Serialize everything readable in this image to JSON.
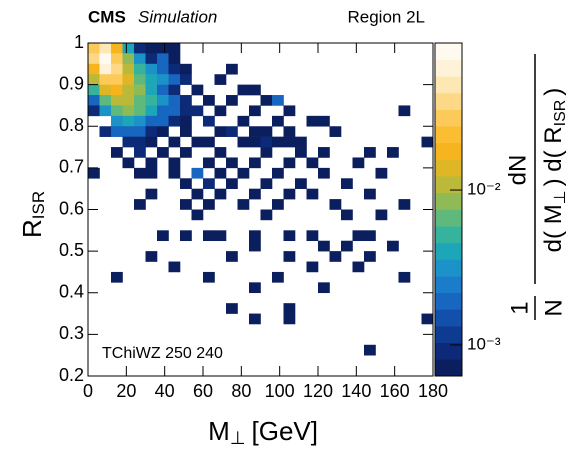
{
  "chart_data": {
    "type": "heatmap",
    "cms": "CMS",
    "cms_sub": "Simulation",
    "region": "Region 2L",
    "annotation": "TChiWZ 250 240",
    "xlabel": "M",
    "xlabel_sub": "⊥",
    "xlabel_unit": "[GeV]",
    "ylabel": "R",
    "ylabel_sub": "ISR",
    "zlabel": {
      "left_num": "1",
      "left_den": "N",
      "num": "dN",
      "den_parts": [
        "d( M",
        "⊥",
        ") d( R",
        "ISR",
        ")"
      ]
    },
    "xlim": [
      0,
      180
    ],
    "xticks": [
      0,
      20,
      40,
      60,
      80,
      100,
      120,
      140,
      160,
      180
    ],
    "ylim": [
      0.2,
      1
    ],
    "yticks": [
      0.2,
      0.3,
      0.4,
      0.5,
      0.6,
      0.7,
      0.8,
      0.9,
      1
    ],
    "xbin": 6,
    "ybin": 0.025,
    "zlim": [
      0.00063,
      0.089
    ],
    "zlog": true,
    "zticks": [
      {
        "value": 0.001,
        "label": "10⁻³"
      },
      {
        "value": 0.01,
        "label": "10⁻²"
      }
    ],
    "colors": [
      "#0b1f5e",
      "#0c2a78",
      "#0e3b92",
      "#1250ac",
      "#1766bf",
      "#1b7dca",
      "#1b93c8",
      "#1da6b8",
      "#35b39c",
      "#5fb87c",
      "#8fba56",
      "#bab93a",
      "#dfb626",
      "#f6b41e",
      "#fbbd32",
      "#fcca58",
      "#fdd987",
      "#fde7b3",
      "#fef3d9",
      "#fffaf0"
    ],
    "rows": [
      {
        "y": 0.975,
        "x": [
          0,
          6,
          12,
          18,
          24,
          30,
          36,
          42
        ],
        "values": [
          0.03,
          0.05,
          0.02,
          0.004,
          0.001,
          0.0008,
          0.0008,
          0.0008
        ]
      },
      {
        "y": 0.95,
        "x": [
          0,
          6,
          12,
          18,
          24,
          30,
          36,
          42
        ],
        "values": [
          0.04,
          0.08,
          0.03,
          0.008,
          0.003,
          0.001,
          0.002,
          0.0008
        ]
      },
      {
        "y": 0.925,
        "x": [
          0,
          6,
          12,
          18,
          24,
          30,
          36,
          42,
          48,
          72
        ],
        "values": [
          0.02,
          0.06,
          0.04,
          0.01,
          0.005,
          0.003,
          0.002,
          0.001,
          0.0008,
          0.0008
        ]
      },
      {
        "y": 0.9,
        "x": [
          0,
          6,
          12,
          18,
          24,
          30,
          36,
          42,
          48,
          66
        ],
        "values": [
          0.01,
          0.03,
          0.03,
          0.015,
          0.006,
          0.004,
          0.003,
          0.002,
          0.001,
          0.0008
        ]
      },
      {
        "y": 0.875,
        "x": [
          0,
          6,
          12,
          18,
          24,
          30,
          36,
          42,
          54,
          78,
          84
        ],
        "values": [
          0.005,
          0.015,
          0.02,
          0.012,
          0.008,
          0.004,
          0.002,
          0.001,
          0.0008,
          0.0008,
          0.0008
        ]
      },
      {
        "y": 0.85,
        "x": [
          0,
          6,
          12,
          18,
          24,
          30,
          36,
          42,
          48,
          60,
          72,
          90,
          96
        ],
        "values": [
          0.002,
          0.006,
          0.01,
          0.01,
          0.007,
          0.005,
          0.003,
          0.002,
          0.001,
          0.0008,
          0.0008,
          0.0008,
          0.002
        ]
      },
      {
        "y": 0.825,
        "x": [
          0,
          6,
          12,
          18,
          24,
          30,
          36,
          42,
          48,
          54,
          66,
          84,
          102,
          162
        ],
        "values": [
          0.001,
          0.003,
          0.006,
          0.008,
          0.006,
          0.004,
          0.002,
          0.002,
          0.001,
          0.001,
          0.0008,
          0.0008,
          0.0008,
          0.0008
        ]
      },
      {
        "y": 0.8,
        "x": [
          12,
          18,
          24,
          30,
          36,
          42,
          48,
          60,
          78,
          96,
          114,
          120
        ],
        "values": [
          0.003,
          0.004,
          0.003,
          0.002,
          0.002,
          0.001,
          0.0008,
          0.001,
          0.0008,
          0.0008,
          0.0008,
          0.0008
        ]
      },
      {
        "y": 0.775,
        "x": [
          6,
          12,
          18,
          24,
          30,
          36,
          48,
          66,
          72,
          84,
          90,
          102,
          126
        ],
        "values": [
          0.001,
          0.002,
          0.002,
          0.002,
          0.001,
          0.0008,
          0.0008,
          0.0008,
          0.001,
          0.0008,
          0.0008,
          0.0008,
          0.0008
        ]
      },
      {
        "y": 0.75,
        "x": [
          18,
          24,
          30,
          42,
          54,
          60,
          78,
          84,
          90,
          96,
          102,
          108,
          174
        ],
        "values": [
          0.001,
          0.001,
          0.0008,
          0.0008,
          0.0008,
          0.0008,
          0.0008,
          0.0008,
          0.001,
          0.0008,
          0.0008,
          0.0008,
          0.0008
        ]
      },
      {
        "y": 0.725,
        "x": [
          12,
          24,
          36,
          48,
          66,
          90,
          108,
          120,
          144,
          156
        ],
        "values": [
          0.0008,
          0.001,
          0.0008,
          0.0008,
          0.0008,
          0.0008,
          0.0008,
          0.0008,
          0.0008,
          0.0008
        ]
      },
      {
        "y": 0.7,
        "x": [
          18,
          30,
          42,
          60,
          72,
          84,
          102,
          114,
          138
        ],
        "values": [
          0.0008,
          0.0008,
          0.0008,
          0.0008,
          0.0008,
          0.0008,
          0.0008,
          0.0008,
          0.0008
        ]
      },
      {
        "y": 0.675,
        "x": [
          0,
          24,
          30,
          42,
          54,
          66,
          78,
          96,
          120,
          150
        ],
        "values": [
          0.0008,
          0.0008,
          0.0008,
          0.0008,
          0.002,
          0.0008,
          0.0008,
          0.0008,
          0.0008,
          0.0008
        ]
      },
      {
        "y": 0.65,
        "x": [
          48,
          60,
          72,
          90,
          108,
          132
        ],
        "values": [
          0.0008,
          0.001,
          0.0008,
          0.0008,
          0.0008,
          0.0008
        ]
      },
      {
        "y": 0.625,
        "x": [
          30,
          54,
          66,
          84,
          102,
          114,
          144
        ],
        "values": [
          0.0008,
          0.0008,
          0.0008,
          0.0008,
          0.0008,
          0.0008,
          0.0008
        ]
      },
      {
        "y": 0.6,
        "x": [
          24,
          48,
          60,
          78,
          96,
          126,
          162
        ],
        "values": [
          0.0008,
          0.0008,
          0.0008,
          0.0008,
          0.0008,
          0.0008,
          0.0008
        ]
      },
      {
        "y": 0.575,
        "x": [
          54,
          90,
          132,
          150
        ],
        "values": [
          0.0008,
          0.0008,
          0.0008,
          0.0008
        ]
      },
      {
        "y": 0.525,
        "x": [
          36,
          48,
          60,
          66,
          84,
          102,
          114,
          138,
          144
        ],
        "values": [
          0.0008,
          0.0008,
          0.0008,
          0.0008,
          0.0008,
          0.0008,
          0.0008,
          0.0008,
          0.0008
        ]
      },
      {
        "y": 0.5,
        "x": [
          84,
          120,
          132,
          156
        ],
        "values": [
          0.0008,
          0.0008,
          0.0008,
          0.0008
        ]
      },
      {
        "y": 0.475,
        "x": [
          30,
          72,
          102,
          126,
          144
        ],
        "values": [
          0.0008,
          0.0008,
          0.0008,
          0.0008,
          0.0008
        ]
      },
      {
        "y": 0.45,
        "x": [
          42,
          114,
          138
        ],
        "values": [
          0.0008,
          0.0008,
          0.0008
        ]
      },
      {
        "y": 0.425,
        "x": [
          12,
          60,
          96,
          162
        ],
        "values": [
          0.0008,
          0.0008,
          0.0008,
          0.0008
        ]
      },
      {
        "y": 0.4,
        "x": [
          84,
          120
        ],
        "values": [
          0.0008,
          0.0008
        ]
      },
      {
        "y": 0.35,
        "x": [
          72,
          102
        ],
        "values": [
          0.0008,
          0.0008
        ]
      },
      {
        "y": 0.325,
        "x": [
          84,
          102,
          174
        ],
        "values": [
          0.0008,
          0.0008,
          0.0008
        ]
      },
      {
        "y": 0.25,
        "x": [
          144
        ],
        "values": [
          0.0008
        ]
      }
    ]
  }
}
